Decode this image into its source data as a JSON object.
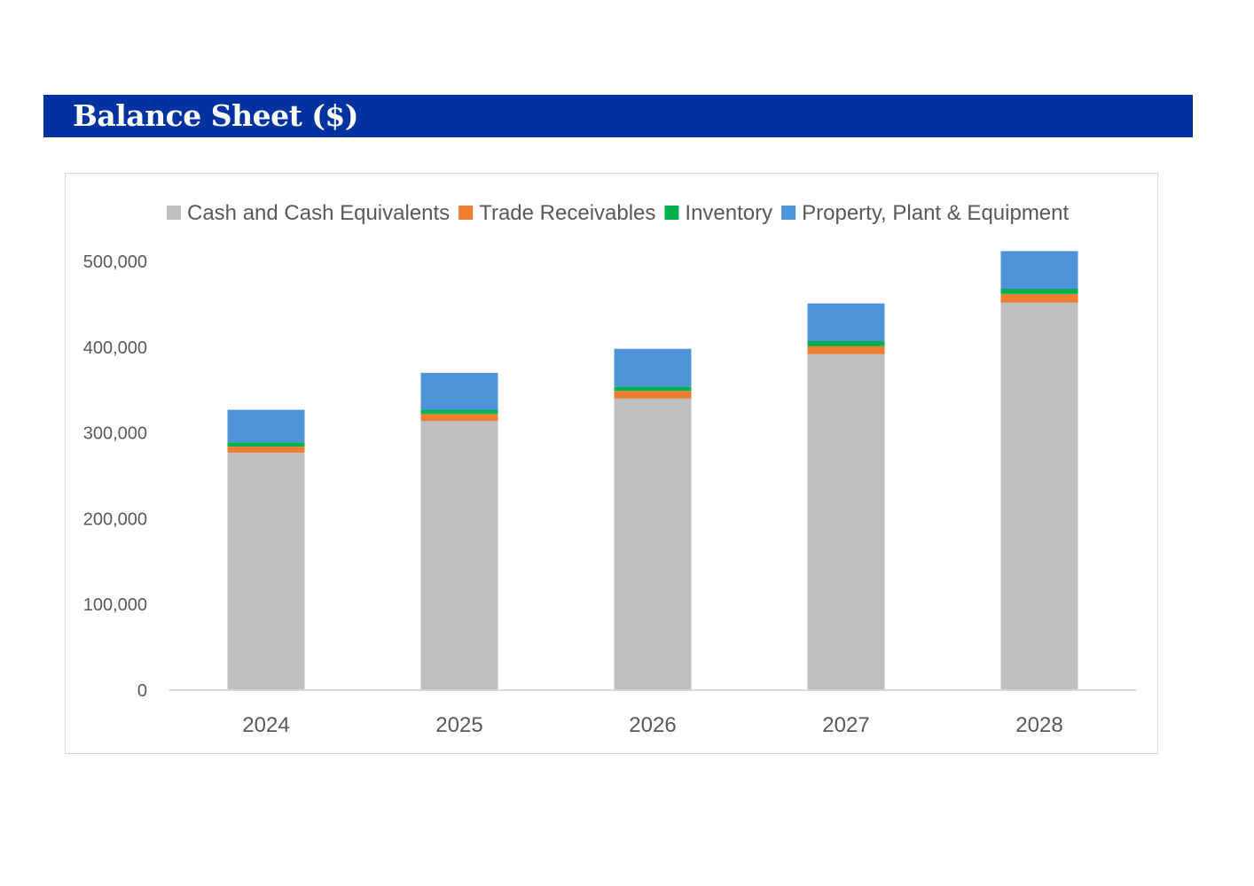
{
  "header": {
    "title": "Balance Sheet ($)"
  },
  "chart_data": {
    "type": "bar",
    "stacked": true,
    "title": "",
    "xlabel": "",
    "ylabel": "",
    "ylim": [
      0,
      500000
    ],
    "yticks": [
      0,
      100000,
      200000,
      300000,
      400000,
      500000
    ],
    "ytick_labels": [
      "0",
      "100,000",
      "200,000",
      "300,000",
      "400,000",
      "500,000"
    ],
    "grid": false,
    "legend_position": "top",
    "categories": [
      "2024",
      "2025",
      "2026",
      "2027",
      "2028"
    ],
    "series": [
      {
        "name": "Cash and Cash Equivalents",
        "color": "#bfbfbf",
        "values": [
          277000,
          314000,
          340000,
          392000,
          452000
        ]
      },
      {
        "name": "Trade Receivables",
        "color": "#ed7d31",
        "values": [
          7000,
          8000,
          9000,
          9000,
          10000
        ]
      },
      {
        "name": "Inventory",
        "color": "#00b050",
        "values": [
          5000,
          5000,
          5000,
          6000,
          6000
        ]
      },
      {
        "name": "Property, Plant & Equipment",
        "color": "#4f94d8",
        "values": [
          38000,
          43000,
          44000,
          44000,
          44000
        ]
      }
    ]
  }
}
